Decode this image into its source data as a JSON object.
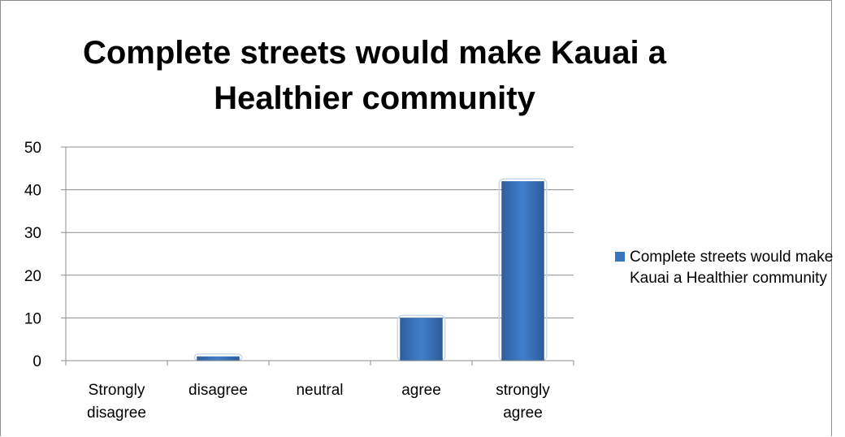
{
  "chart_data": {
    "type": "bar",
    "title": "Complete streets would make Kauai a Healthier community",
    "categories": [
      "Strongly disagree",
      "disagree",
      "neutral",
      "agree",
      "strongly agree"
    ],
    "series": [
      {
        "name": "Complete streets would make Kauai a Healthier community",
        "values": [
          0,
          1,
          0,
          10,
          42
        ],
        "color": "#3a74bd"
      }
    ],
    "ylim": [
      0,
      50
    ],
    "yticks": [
      0,
      10,
      20,
      30,
      40,
      50
    ],
    "grid": true,
    "legend_position": "right"
  }
}
